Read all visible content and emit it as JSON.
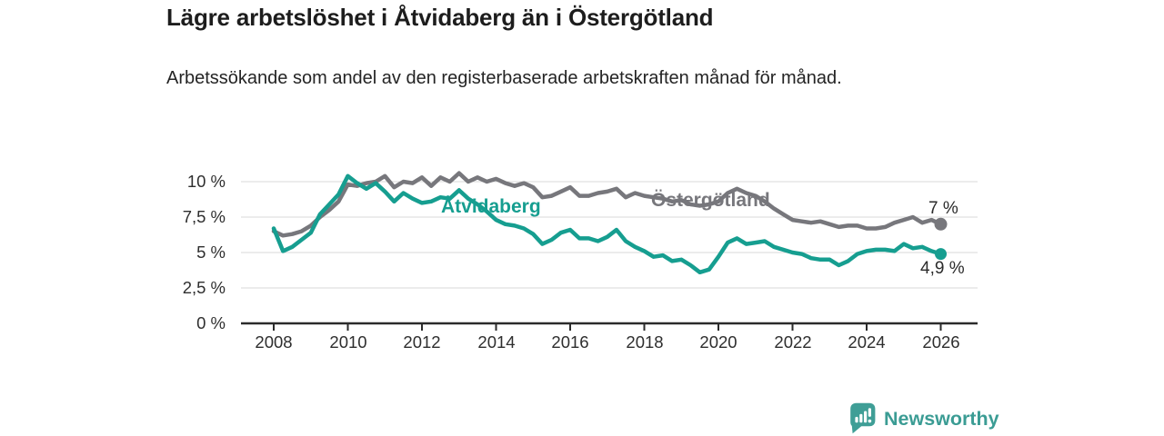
{
  "header": {
    "title": "Lägre arbetslöshet i Åtvidaberg än i Östergötland",
    "subtitle": "Arbetssökande som andel av den registerbaserade arbetskraften månad för månad."
  },
  "chart_data": {
    "type": "line",
    "title": "Lägre arbetslöshet i Åtvidaberg än i Östergötland",
    "xlabel": "",
    "ylabel": "",
    "xlim": [
      2008,
      2026
    ],
    "ylim": [
      0,
      11.2
    ],
    "grid": "horizontal",
    "legend_position": "inline-labels",
    "y_tick_labels": [
      "10 %",
      "7,5 %",
      "5 %",
      "2,5 %",
      "0 %"
    ],
    "y_tick_values": [
      10,
      7.5,
      5,
      2.5,
      0
    ],
    "x_ticks": [
      "2008",
      "2010",
      "2012",
      "2014",
      "2016",
      "2018",
      "2020",
      "2022",
      "2024",
      "2026"
    ],
    "x": [
      2008,
      2008.25,
      2008.5,
      2008.75,
      2009,
      2009.25,
      2009.5,
      2009.75,
      2010,
      2010.25,
      2010.5,
      2010.75,
      2011,
      2011.25,
      2011.5,
      2011.75,
      2012,
      2012.25,
      2012.5,
      2012.75,
      2013,
      2013.25,
      2013.5,
      2013.75,
      2014,
      2014.25,
      2014.5,
      2014.75,
      2015,
      2015.25,
      2015.5,
      2015.75,
      2016,
      2016.25,
      2016.5,
      2016.75,
      2017,
      2017.25,
      2017.5,
      2017.75,
      2018,
      2018.25,
      2018.5,
      2018.75,
      2019,
      2019.25,
      2019.5,
      2019.75,
      2020,
      2020.25,
      2020.5,
      2020.75,
      2021,
      2021.25,
      2021.5,
      2021.75,
      2022,
      2022.25,
      2022.5,
      2022.75,
      2023,
      2023.25,
      2023.5,
      2023.75,
      2024,
      2024.25,
      2024.5,
      2024.75,
      2025,
      2025.25,
      2025.5,
      2025.75,
      2026
    ],
    "series": [
      {
        "name": "Åtvidaberg",
        "color": "#169e90",
        "end_label": "4,9 %",
        "end_value": 4.9,
        "values": [
          6.7,
          5.1,
          5.4,
          5.9,
          6.4,
          7.7,
          8.4,
          9.1,
          10.4,
          9.9,
          9.5,
          9.9,
          9.3,
          8.6,
          9.2,
          8.8,
          8.5,
          8.6,
          8.9,
          8.8,
          9.4,
          8.8,
          8.4,
          7.9,
          7.3,
          7.0,
          6.9,
          6.7,
          6.3,
          5.6,
          5.9,
          6.4,
          6.6,
          6.0,
          6.0,
          5.8,
          6.1,
          6.6,
          5.8,
          5.4,
          5.1,
          4.7,
          4.8,
          4.4,
          4.5,
          4.1,
          3.6,
          3.8,
          4.7,
          5.7,
          6.0,
          5.6,
          5.7,
          5.8,
          5.4,
          5.2,
          5.0,
          4.9,
          4.6,
          4.5,
          4.5,
          4.1,
          4.4,
          4.9,
          5.1,
          5.2,
          5.2,
          5.1,
          5.6,
          5.3,
          5.4,
          5.1,
          4.9
        ]
      },
      {
        "name": "Östergötland",
        "color": "#77777c",
        "end_label": "7 %",
        "end_value": 7.0,
        "values": [
          6.5,
          6.2,
          6.3,
          6.5,
          6.9,
          7.5,
          8.0,
          8.6,
          9.8,
          9.7,
          9.9,
          10.0,
          10.4,
          9.6,
          10.0,
          9.9,
          10.3,
          9.7,
          10.3,
          10.0,
          10.6,
          10.0,
          10.3,
          10.0,
          10.2,
          9.9,
          9.7,
          9.9,
          9.6,
          8.9,
          9.0,
          9.3,
          9.6,
          9.0,
          9.0,
          9.2,
          9.3,
          9.5,
          8.9,
          9.2,
          9.0,
          8.9,
          8.8,
          8.6,
          8.7,
          8.4,
          8.3,
          8.4,
          8.6,
          9.2,
          9.5,
          9.2,
          9.0,
          8.6,
          8.1,
          7.7,
          7.3,
          7.2,
          7.1,
          7.2,
          7.0,
          6.8,
          6.9,
          6.9,
          6.7,
          6.7,
          6.8,
          7.1,
          7.3,
          7.5,
          7.1,
          7.3,
          7.0
        ]
      }
    ]
  },
  "footer": {
    "brand": "Newsworthy",
    "brand_color": "#3b9c94",
    "logo_icon": "bar-chart-pin-icon"
  }
}
